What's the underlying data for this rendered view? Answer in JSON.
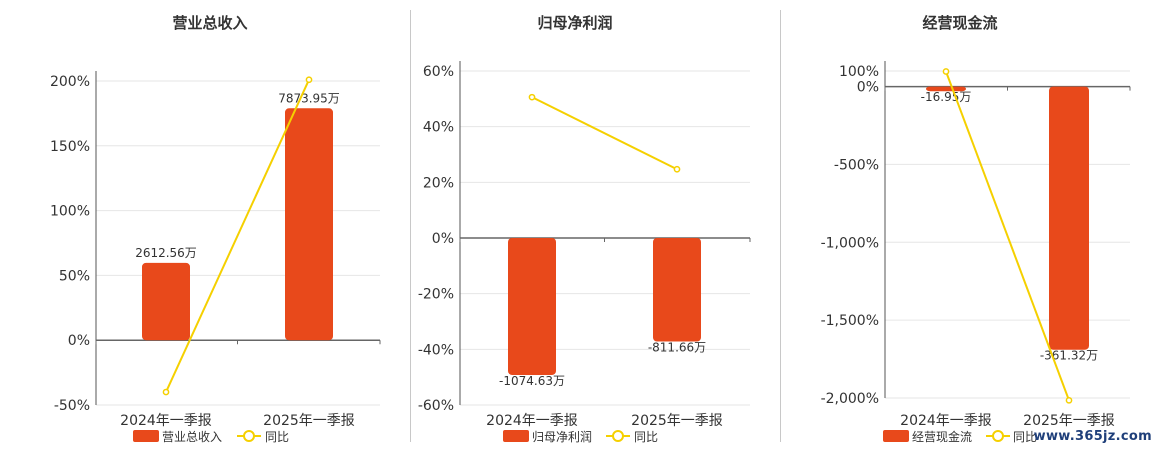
{
  "colors": {
    "bar": "#e8491b",
    "line": "#f5d000",
    "grid": "#e6e6e6",
    "axis": "#555555",
    "text": "#333333"
  },
  "legend": {
    "yoy_label": "同比"
  },
  "watermark": "www.365jz.com",
  "chart_data": [
    {
      "type": "bar",
      "title": "营业总收入",
      "categories": [
        "2024年一季报",
        "2025年一季报"
      ],
      "series": [
        {
          "name": "营业总收入",
          "type": "bar",
          "values": [
            0.5969,
            1.7894
          ],
          "labels": [
            "2612.56万",
            "7873.95万"
          ]
        },
        {
          "name": "同比",
          "type": "line",
          "values": [
            -0.4,
            2.01
          ]
        }
      ],
      "yticks": [
        "200%",
        "150%",
        "100%",
        "50%",
        "0%",
        "-50%"
      ],
      "ylim": [
        -0.5,
        2.0
      ]
    },
    {
      "type": "bar",
      "title": "归母净利润",
      "categories": [
        "2024年一季报",
        "2025年一季报"
      ],
      "series": [
        {
          "name": "归母净利润",
          "type": "bar",
          "values": [
            -0.492,
            -0.372
          ],
          "labels": [
            "-1074.63万",
            "-811.66万"
          ]
        },
        {
          "name": "同比",
          "type": "line",
          "values": [
            0.506,
            0.247
          ]
        }
      ],
      "yticks": [
        "60%",
        "40%",
        "20%",
        "0%",
        "-20%",
        "-40%",
        "-60%"
      ],
      "ylim": [
        -0.6,
        0.6
      ]
    },
    {
      "type": "bar",
      "title": "经营现金流",
      "categories": [
        "2024年一季报",
        "2025年一季报"
      ],
      "series": [
        {
          "name": "经营现金流",
          "type": "bar",
          "values": [
            -0.3,
            -16.9
          ],
          "labels": [
            "-16.95万",
            "-361.32万"
          ]
        },
        {
          "name": "同比",
          "type": "line",
          "values": [
            0.97,
            -20.15
          ]
        }
      ],
      "yticks": [
        "100%",
        "0%",
        "-500%",
        "-1,000%",
        "-1,500%",
        "-2,000%"
      ],
      "ytick_values": [
        1,
        0,
        -5,
        -10,
        -15,
        -20
      ],
      "ylim": [
        -20.0,
        1.0
      ]
    }
  ]
}
